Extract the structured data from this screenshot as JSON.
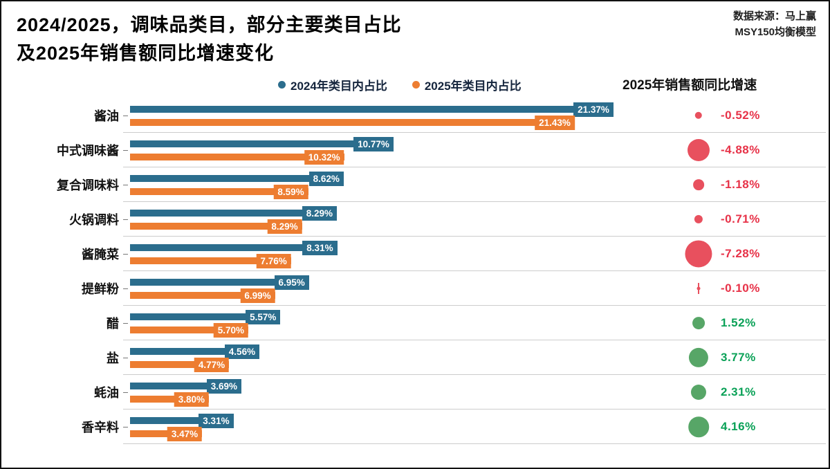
{
  "header": {
    "title_line1": "2024/2025，调味品类目，部分主要类目占比",
    "title_line2": "及2025年销售额同比增速变化",
    "source_line1": "数据来源：马上赢",
    "source_line2": "MSY150均衡模型"
  },
  "legend": {
    "series_2024": "2024年类目内占比",
    "series_2025": "2025年类目内占比",
    "growth_header": "2025年销售额同比增速"
  },
  "colors": {
    "series_2024": "#2b6d8d",
    "series_2025": "#ed7d31",
    "negative": "#e8505e",
    "positive": "#57a667",
    "negative_text": "#e73248",
    "positive_text": "#0aa157"
  },
  "chart_data": {
    "type": "bar",
    "orientation": "horizontal",
    "title": "2024/2025，调味品类目，部分主要类目占比及2025年销售额同比增速变化",
    "xlabel": "",
    "ylabel": "",
    "xlim": [
      0,
      22
    ],
    "unit": "%",
    "grid": "row-separators",
    "legend_position": "top",
    "categories": [
      "酱油",
      "中式调味酱",
      "复合调味料",
      "火锅调料",
      "酱腌菜",
      "提鲜粉",
      "醋",
      "盐",
      "蚝油",
      "香辛料"
    ],
    "series": [
      {
        "name": "2024年类目内占比",
        "values": [
          21.37,
          10.77,
          8.62,
          8.29,
          8.31,
          6.95,
          5.57,
          4.56,
          3.69,
          3.31
        ],
        "labels": [
          "21.37%",
          "10.77%",
          "8.62%",
          "8.29%",
          "8.31%",
          "6.95%",
          "5.57%",
          "4.56%",
          "3.69%",
          "3.31%"
        ]
      },
      {
        "name": "2025年类目内占比",
        "values": [
          21.43,
          10.32,
          8.59,
          8.29,
          7.76,
          6.99,
          5.7,
          4.77,
          3.8,
          3.47
        ],
        "labels": [
          "21.43%",
          "10.32%",
          "8.59%",
          "8.29%",
          "7.76%",
          "6.99%",
          "5.70%",
          "4.77%",
          "3.80%",
          "3.47%"
        ]
      }
    ],
    "growth_series": {
      "name": "2025年销售额同比增速",
      "values": [
        -0.52,
        -4.88,
        -1.18,
        -0.71,
        -7.28,
        -0.1,
        1.52,
        3.77,
        2.31,
        4.16
      ],
      "labels": [
        "-0.52%",
        "-4.88%",
        "-1.18%",
        "-0.71%",
        "-7.28%",
        "-0.10%",
        "1.52%",
        "3.77%",
        "2.31%",
        "4.16%"
      ]
    }
  }
}
